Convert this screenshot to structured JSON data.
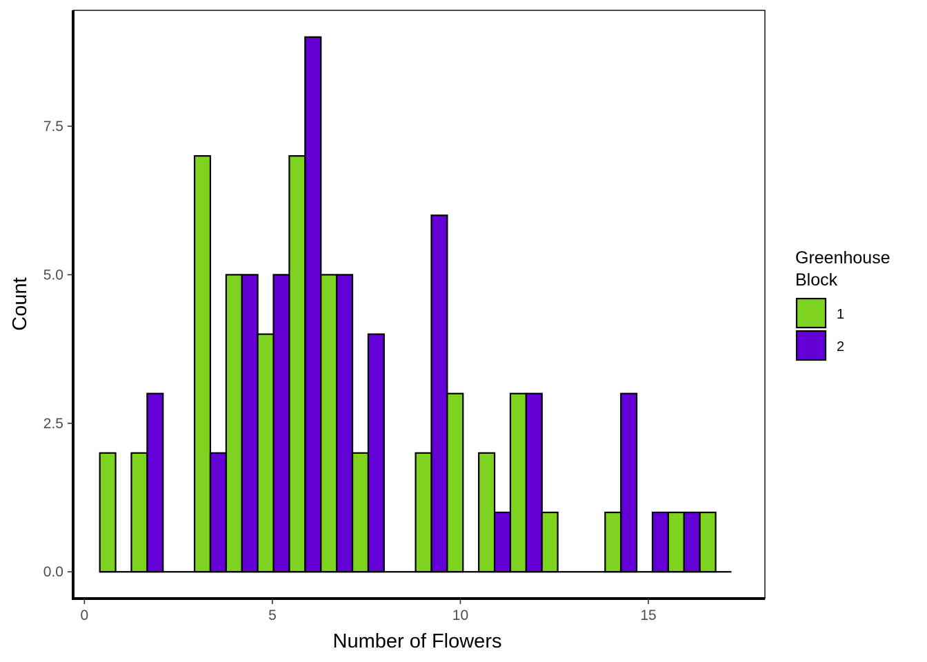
{
  "chart_data": {
    "type": "bar",
    "title": "",
    "xlabel": "Number of Flowers",
    "ylabel": "Count",
    "xlim": [
      -0.3,
      18.1
    ],
    "ylim": [
      -0.45,
      9.45
    ],
    "x_ticks": [
      0,
      5,
      10,
      15
    ],
    "x_tick_labels": [
      "0",
      "5",
      "10",
      "15"
    ],
    "y_ticks": [
      0,
      2.5,
      5,
      7.5
    ],
    "y_tick_labels": [
      "0.0",
      "2.5",
      "5.0",
      "7.5"
    ],
    "grid": false,
    "legend": {
      "title_lines": [
        "Greenhouse",
        "Block"
      ],
      "position": "right"
    },
    "bin_width": 0.84,
    "bar_position": "dodge",
    "x": [
      0.83,
      1.67,
      2.51,
      3.35,
      4.19,
      5.03,
      5.87,
      6.71,
      7.55,
      8.39,
      9.23,
      10.07,
      10.91,
      11.75,
      12.59,
      13.43,
      14.27,
      15.11,
      15.95,
      16.79
    ],
    "series": [
      {
        "name": "1",
        "color": "#7ed321",
        "values": [
          2,
          2,
          0,
          7,
          5,
          4,
          7,
          5,
          2,
          0,
          2,
          3,
          2,
          3,
          1,
          0,
          1,
          0,
          1,
          1
        ]
      },
      {
        "name": "2",
        "color": "#6200d6",
        "values": [
          0,
          3,
          0,
          2,
          5,
          5,
          9,
          5,
          4,
          0,
          6,
          0,
          1,
          3,
          0,
          0,
          3,
          1,
          1,
          0
        ]
      }
    ]
  }
}
